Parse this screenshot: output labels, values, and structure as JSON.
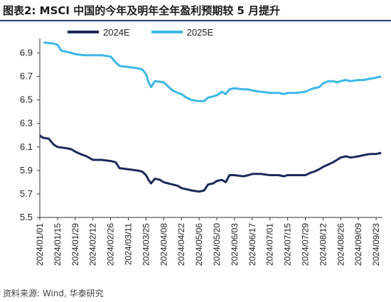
{
  "header": {
    "title": "图表2:  MSCI 中国的今年及明年全年盈利预期较 5 月提升"
  },
  "footer": {
    "source": "资料来源: Wind, 华泰研究"
  },
  "chart_data": {
    "type": "line",
    "title": "",
    "xlabel": "",
    "ylabel": "",
    "ylim": [
      5.5,
      7.0
    ],
    "yticks": [
      "5.5",
      "5.7",
      "5.9",
      "6.1",
      "6.3",
      "6.5",
      "6.7",
      "6.9"
    ],
    "grid": false,
    "legend_position": "top",
    "xtick_labels": [
      "2024/01/01",
      "2024/01/15",
      "2024/01/29",
      "2024/02/12",
      "2024/02/26",
      "2024/03/11",
      "2024/03/25",
      "2024/04/08",
      "2024/04/22",
      "2024/05/06",
      "2024/05/20",
      "2024/06/03",
      "2024/06/17",
      "2024/07/01",
      "2024/07/15",
      "2024/07/29",
      "2024/08/12",
      "2024/08/26",
      "2024/09/09",
      "2024/09/23"
    ],
    "series": [
      {
        "name": "2024E",
        "color": "#1b2a5c",
        "points": [
          [
            "2024/01/01",
            6.2
          ],
          [
            "2024/01/03",
            6.18
          ],
          [
            "2024/01/08",
            6.17
          ],
          [
            "2024/01/12",
            6.12
          ],
          [
            "2024/01/15",
            6.1
          ],
          [
            "2024/01/22",
            6.09
          ],
          [
            "2024/01/26",
            6.08
          ],
          [
            "2024/01/29",
            6.06
          ],
          [
            "2024/02/02",
            6.04
          ],
          [
            "2024/02/07",
            6.02
          ],
          [
            "2024/02/12",
            5.99
          ],
          [
            "2024/02/19",
            5.99
          ],
          [
            "2024/02/26",
            5.98
          ],
          [
            "2024/03/01",
            5.97
          ],
          [
            "2024/03/04",
            5.92
          ],
          [
            "2024/03/11",
            5.91
          ],
          [
            "2024/03/18",
            5.9
          ],
          [
            "2024/03/22",
            5.89
          ],
          [
            "2024/03/25",
            5.86
          ],
          [
            "2024/03/27",
            5.82
          ],
          [
            "2024/03/29",
            5.79
          ],
          [
            "2024/04/01",
            5.83
          ],
          [
            "2024/04/05",
            5.82
          ],
          [
            "2024/04/08",
            5.8
          ],
          [
            "2024/04/15",
            5.78
          ],
          [
            "2024/04/19",
            5.77
          ],
          [
            "2024/04/22",
            5.75
          ],
          [
            "2024/04/26",
            5.74
          ],
          [
            "2024/04/30",
            5.73
          ],
          [
            "2024/05/06",
            5.72
          ],
          [
            "2024/05/10",
            5.73
          ],
          [
            "2024/05/13",
            5.78
          ],
          [
            "2024/05/17",
            5.79
          ],
          [
            "2024/05/20",
            5.81
          ],
          [
            "2024/05/24",
            5.82
          ],
          [
            "2024/05/27",
            5.8
          ],
          [
            "2024/05/30",
            5.86
          ],
          [
            "2024/06/03",
            5.86
          ],
          [
            "2024/06/10",
            5.85
          ],
          [
            "2024/06/14",
            5.86
          ],
          [
            "2024/06/17",
            5.87
          ],
          [
            "2024/06/24",
            5.87
          ],
          [
            "2024/07/01",
            5.86
          ],
          [
            "2024/07/08",
            5.86
          ],
          [
            "2024/07/12",
            5.85
          ],
          [
            "2024/07/15",
            5.86
          ],
          [
            "2024/07/22",
            5.86
          ],
          [
            "2024/07/29",
            5.86
          ],
          [
            "2024/08/02",
            5.88
          ],
          [
            "2024/08/05",
            5.89
          ],
          [
            "2024/08/09",
            5.91
          ],
          [
            "2024/08/12",
            5.93
          ],
          [
            "2024/08/16",
            5.95
          ],
          [
            "2024/08/20",
            5.97
          ],
          [
            "2024/08/23",
            5.99
          ],
          [
            "2024/08/26",
            6.01
          ],
          [
            "2024/08/30",
            6.02
          ],
          [
            "2024/09/03",
            6.01
          ],
          [
            "2024/09/09",
            6.02
          ],
          [
            "2024/09/13",
            6.03
          ],
          [
            "2024/09/18",
            6.04
          ],
          [
            "2024/09/23",
            6.04
          ],
          [
            "2024/09/27",
            6.05
          ]
        ]
      },
      {
        "name": "2025E",
        "color": "#3cb7e8",
        "points": [
          [
            "2024/01/04",
            6.99
          ],
          [
            "2024/01/12",
            6.98
          ],
          [
            "2024/01/15",
            6.97
          ],
          [
            "2024/01/18",
            6.92
          ],
          [
            "2024/01/22",
            6.91
          ],
          [
            "2024/01/26",
            6.9
          ],
          [
            "2024/01/29",
            6.89
          ],
          [
            "2024/02/05",
            6.88
          ],
          [
            "2024/02/12",
            6.88
          ],
          [
            "2024/02/19",
            6.88
          ],
          [
            "2024/02/26",
            6.87
          ],
          [
            "2024/03/01",
            6.82
          ],
          [
            "2024/03/04",
            6.79
          ],
          [
            "2024/03/11",
            6.78
          ],
          [
            "2024/03/18",
            6.77
          ],
          [
            "2024/03/22",
            6.76
          ],
          [
            "2024/03/25",
            6.72
          ],
          [
            "2024/03/27",
            6.65
          ],
          [
            "2024/03/29",
            6.61
          ],
          [
            "2024/04/01",
            6.66
          ],
          [
            "2024/04/08",
            6.65
          ],
          [
            "2024/04/12",
            6.61
          ],
          [
            "2024/04/15",
            6.58
          ],
          [
            "2024/04/19",
            6.56
          ],
          [
            "2024/04/22",
            6.55
          ],
          [
            "2024/04/26",
            6.52
          ],
          [
            "2024/04/30",
            6.5
          ],
          [
            "2024/05/06",
            6.49
          ],
          [
            "2024/05/10",
            6.49
          ],
          [
            "2024/05/13",
            6.52
          ],
          [
            "2024/05/17",
            6.53
          ],
          [
            "2024/05/20",
            6.54
          ],
          [
            "2024/05/24",
            6.57
          ],
          [
            "2024/05/27",
            6.55
          ],
          [
            "2024/05/30",
            6.59
          ],
          [
            "2024/06/03",
            6.6
          ],
          [
            "2024/06/10",
            6.59
          ],
          [
            "2024/06/14",
            6.59
          ],
          [
            "2024/06/17",
            6.58
          ],
          [
            "2024/06/24",
            6.57
          ],
          [
            "2024/07/01",
            6.56
          ],
          [
            "2024/07/08",
            6.56
          ],
          [
            "2024/07/12",
            6.55
          ],
          [
            "2024/07/15",
            6.56
          ],
          [
            "2024/07/22",
            6.56
          ],
          [
            "2024/07/29",
            6.57
          ],
          [
            "2024/08/02",
            6.59
          ],
          [
            "2024/08/05",
            6.6
          ],
          [
            "2024/08/09",
            6.61
          ],
          [
            "2024/08/12",
            6.64
          ],
          [
            "2024/08/16",
            6.66
          ],
          [
            "2024/08/20",
            6.66
          ],
          [
            "2024/08/23",
            6.65
          ],
          [
            "2024/08/26",
            6.66
          ],
          [
            "2024/08/30",
            6.67
          ],
          [
            "2024/09/03",
            6.66
          ],
          [
            "2024/09/09",
            6.67
          ],
          [
            "2024/09/13",
            6.67
          ],
          [
            "2024/09/18",
            6.68
          ],
          [
            "2024/09/23",
            6.69
          ],
          [
            "2024/09/27",
            6.7
          ]
        ]
      }
    ]
  }
}
